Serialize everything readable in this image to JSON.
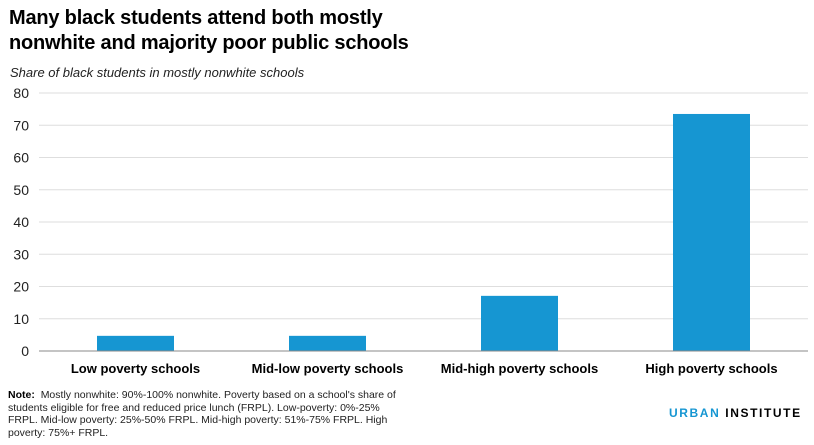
{
  "title": "Many black students attend both mostly nonwhite and majority poor public schools",
  "subtitle": "Share of black students in mostly nonwhite schools",
  "note": {
    "label": "Note:",
    "text": "Mostly nonwhite: 90%-100% nonwhite. Poverty based on a school's share of students eligible  for free and reduced price lunch (FRPL). Low-poverty: 0%-25% FRPL. Mid-low poverty: 25%-50% FRPL. Mid-high poverty: 51%-75% FRPL. High poverty: 75%+ FRPL."
  },
  "logo": {
    "part1": "URBAN",
    "part2": "INSTITUTE"
  },
  "colors": {
    "bar": "#1696d2",
    "grid": "#dedede",
    "axis": "#888888",
    "brand": "#1696d2"
  },
  "chart_data": {
    "type": "bar",
    "title": "Many black students attend both mostly nonwhite and majority poor public schools",
    "subtitle": "Share of black students in mostly nonwhite schools",
    "xlabel": "",
    "ylabel": "Share of black students in mostly nonwhite schools",
    "categories": [
      "Low poverty schools",
      "Mid-low poverty schools",
      "Mid-high poverty schools",
      "High poverty schools"
    ],
    "values": [
      4.7,
      4.7,
      17.1,
      73.5
    ],
    "ylim": [
      0,
      80
    ],
    "yticks": [
      0,
      10,
      20,
      30,
      40,
      50,
      60,
      70,
      80
    ],
    "grid": true,
    "legend": "none"
  }
}
